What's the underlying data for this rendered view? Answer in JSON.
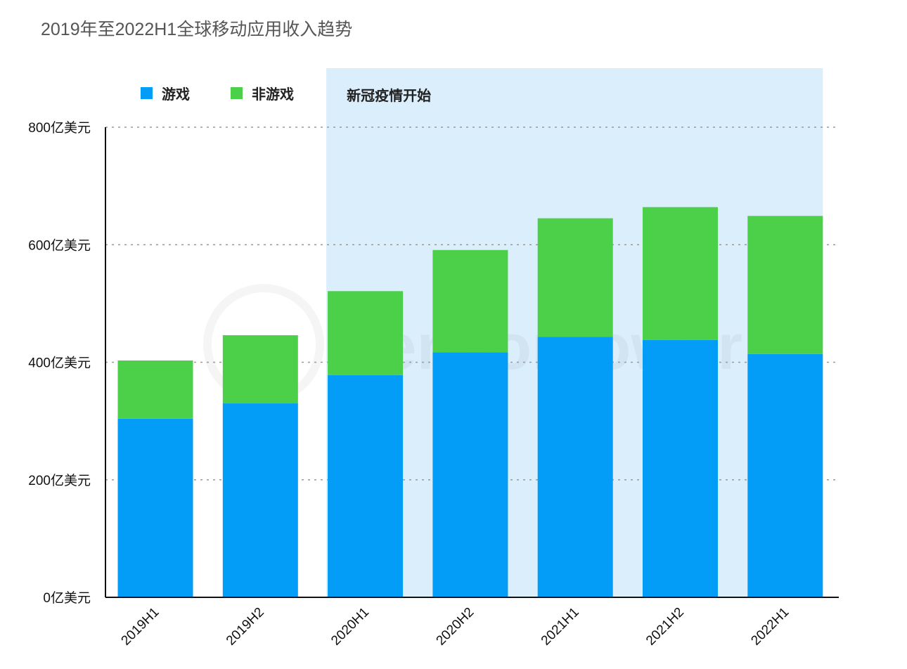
{
  "chart_data": {
    "type": "bar",
    "stacked": true,
    "title": "2019年至2022H1全球移动应用收入趋势",
    "categories": [
      "2019H1",
      "2019H2",
      "2020H1",
      "2020H2",
      "2021H1",
      "2021H2",
      "2022H1"
    ],
    "series": [
      {
        "name": "游戏",
        "color": "#039cf6",
        "values": [
          304,
          330,
          378,
          417,
          443,
          438,
          414
        ]
      },
      {
        "name": "非游戏",
        "color": "#4ccf49",
        "values": [
          99,
          116,
          143,
          174,
          202,
          226,
          235
        ]
      }
    ],
    "ylim": [
      0,
      800
    ],
    "yticks": [
      0,
      200,
      400,
      600,
      800
    ],
    "ytick_labels": [
      "0亿美元",
      "200亿美元",
      "400亿美元",
      "600亿美元",
      "800亿美元"
    ],
    "grid": "horizontal dotted",
    "legend_placement": "top-left",
    "annotation": {
      "label": "新冠疫情开始",
      "from_category": "2020H1",
      "to_category": "2022H1",
      "color": "#dbeefc"
    },
    "watermark": "SensorTower"
  }
}
